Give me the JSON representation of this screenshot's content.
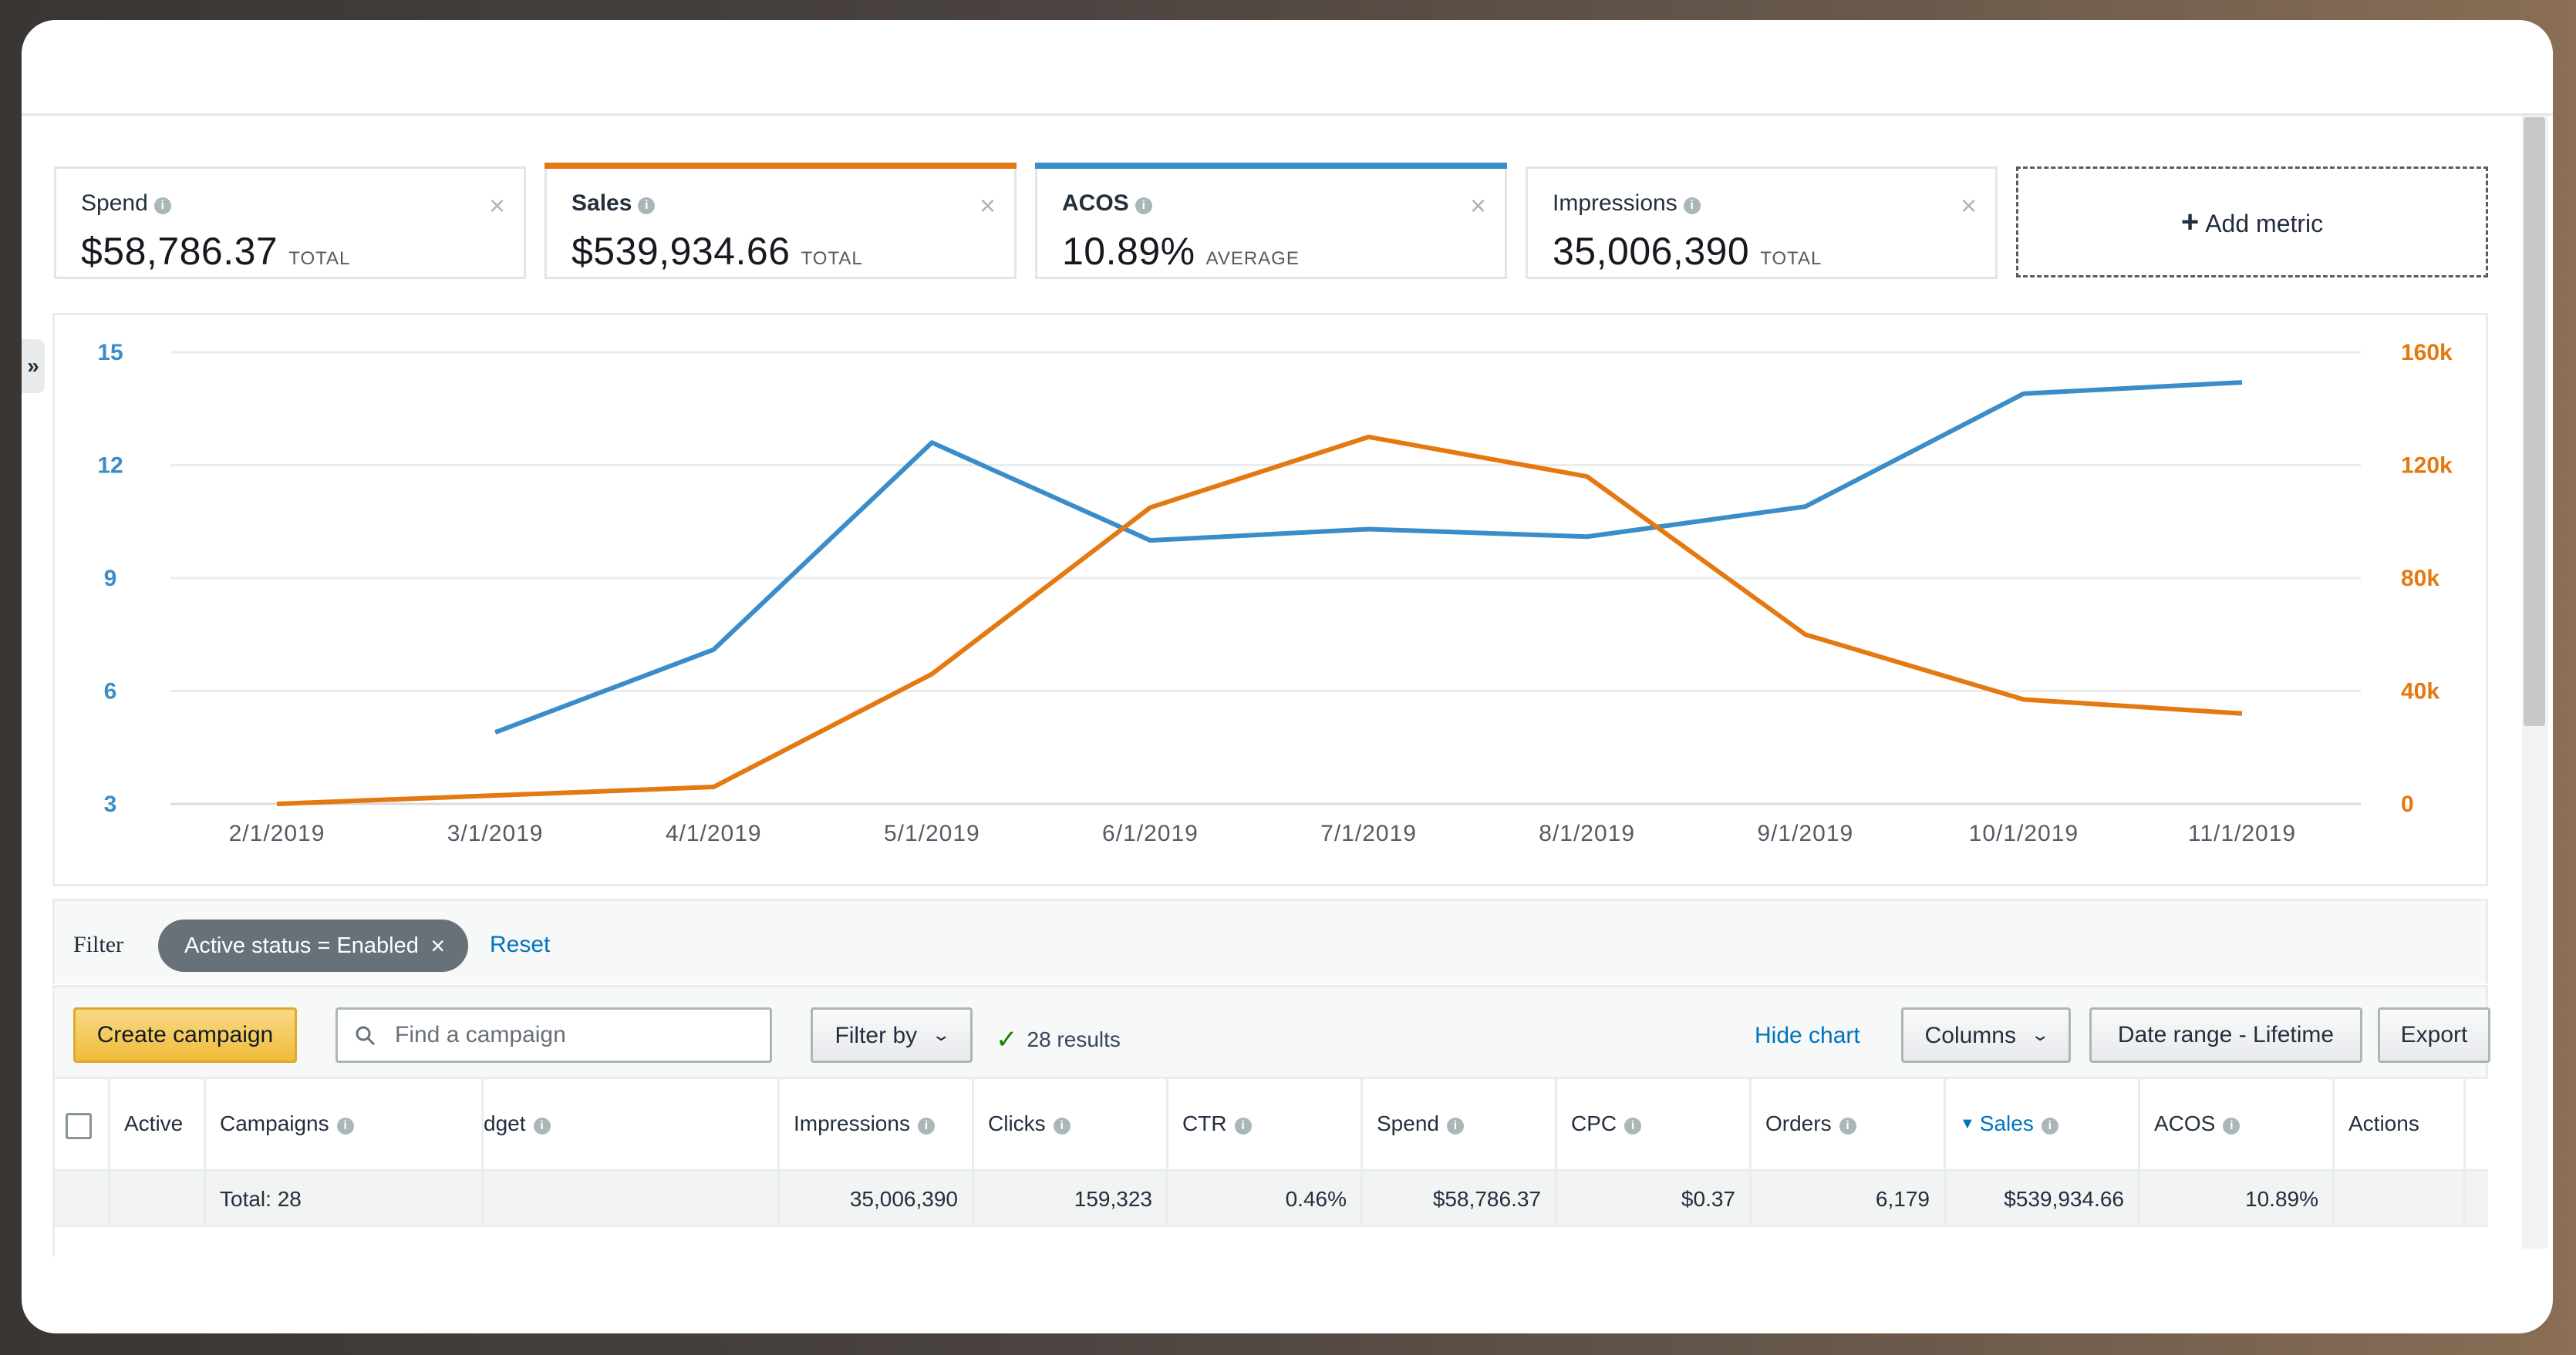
{
  "metrics": [
    {
      "name": "Spend",
      "value": "$58,786.37",
      "unit": "TOTAL",
      "accent": ""
    },
    {
      "name": "Sales",
      "value": "$539,934.66",
      "unit": "TOTAL",
      "accent": "#e47911"
    },
    {
      "name": "ACOS",
      "value": "10.89%",
      "unit": "AVERAGE",
      "accent": "#3b8dc9"
    },
    {
      "name": "Impressions",
      "value": "35,006,390",
      "unit": "TOTAL",
      "accent": ""
    }
  ],
  "add_metric_label": "Add metric",
  "collapse_label": "»",
  "chart_data": {
    "type": "line",
    "x": [
      "2/1/2019",
      "3/1/2019",
      "4/1/2019",
      "5/1/2019",
      "6/1/2019",
      "7/1/2019",
      "8/1/2019",
      "9/1/2019",
      "10/1/2019",
      "11/1/2019"
    ],
    "left_axis": {
      "ticks": [
        "15",
        "12",
        "9",
        "6",
        "3"
      ],
      "range": [
        3,
        15
      ],
      "color": "#3b8dc9"
    },
    "right_axis": {
      "ticks": [
        "160k",
        "120k",
        "80k",
        "40k",
        "0"
      ],
      "range": [
        0,
        160000
      ],
      "color": "#e47911"
    },
    "series": [
      {
        "axis": "left",
        "color": "#3b8dc9",
        "values": [
          null,
          4.9,
          7.1,
          12.6,
          10.0,
          10.3,
          10.1,
          10.9,
          13.9,
          14.2
        ]
      },
      {
        "axis": "right",
        "color": "#e47911",
        "values": [
          0,
          3000,
          6000,
          46000,
          105000,
          130000,
          116000,
          60000,
          37000,
          32000
        ]
      }
    ],
    "grid": true
  },
  "filter": {
    "label": "Filter",
    "chip": "Active status = Enabled",
    "chip_close": "×",
    "reset": "Reset"
  },
  "toolbar": {
    "create": "Create campaign",
    "search_placeholder": "Find a campaign",
    "filter_by": "Filter by",
    "results": "28 results",
    "hide_chart": "Hide chart",
    "columns": "Columns",
    "date_range": "Date range - Lifetime",
    "export": "Export"
  },
  "table": {
    "headers": [
      "Active",
      "Campaigns",
      "dget",
      "Impressions",
      "Clicks",
      "CTR",
      "Spend",
      "CPC",
      "Orders",
      "Sales",
      "ACOS",
      "Actions"
    ],
    "total": {
      "label": "Total: 28",
      "impressions": "35,006,390",
      "clicks": "159,323",
      "ctr": "0.46%",
      "spend": "$58,786.37",
      "cpc": "$0.37",
      "orders": "6,179",
      "sales": "$539,934.66",
      "acos": "10.89%"
    }
  }
}
